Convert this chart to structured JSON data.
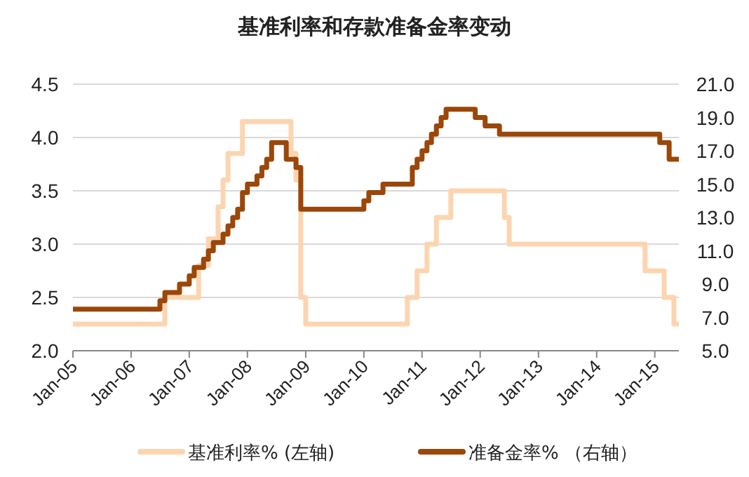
{
  "chart_data": {
    "type": "step",
    "title": "基准利率和存款准备金率变动",
    "xlim": [
      "2005-01",
      "2015-06"
    ],
    "xticks": [
      {
        "value": "2005-01",
        "label": "Jan-05"
      },
      {
        "value": "2006-01",
        "label": "Jan-06"
      },
      {
        "value": "2007-01",
        "label": "Jan-07"
      },
      {
        "value": "2008-01",
        "label": "Jan-08"
      },
      {
        "value": "2009-01",
        "label": "Jan-09"
      },
      {
        "value": "2010-01",
        "label": "Jan-10"
      },
      {
        "value": "2011-01",
        "label": "Jan-11"
      },
      {
        "value": "2012-01",
        "label": "Jan-12"
      },
      {
        "value": "2013-01",
        "label": "Jan-13"
      },
      {
        "value": "2014-01",
        "label": "Jan-14"
      },
      {
        "value": "2015-01",
        "label": "Jan-15"
      }
    ],
    "ylim": [
      2,
      4.5
    ],
    "yticks": [
      {
        "value": 2,
        "label": "2.0"
      },
      2.5,
      {
        "value": 3,
        "label": "3.0"
      },
      3.5,
      {
        "value": 4,
        "label": "4.0"
      },
      4.5
    ],
    "y2lim": [
      5,
      21
    ],
    "y2ticks": [
      {
        "value": 5,
        "label": "5.0"
      },
      {
        "value": 7,
        "label": "7.0"
      },
      {
        "value": 9,
        "label": "9.0"
      },
      {
        "value": 11,
        "label": "11.0"
      },
      {
        "value": 13,
        "label": "13.0"
      },
      {
        "value": 15,
        "label": "15.0"
      },
      {
        "value": 17,
        "label": "17.0"
      },
      {
        "value": 19,
        "label": "19.0"
      },
      {
        "value": 21,
        "label": "21.0"
      }
    ],
    "grid": "y",
    "legend": "bottom",
    "series": [
      {
        "name": "基准利率% (左轴)",
        "color": "#fcd5b0",
        "x": [
          "2005-01",
          "2006-08",
          "2007-03",
          "2007-05",
          "2007-07",
          "2007-08",
          "2007-09",
          "2007-12",
          "2008-10",
          "2008-11",
          "2008-12",
          "2009-01",
          "2010-10",
          "2010-12",
          "2011-02",
          "2011-04",
          "2011-07",
          "2012-06",
          "2012-07",
          "2014-11",
          "2015-03",
          "2015-05",
          "2015-06"
        ],
        "values": [
          2.25,
          2.5,
          2.8,
          3.05,
          3.35,
          3.6,
          3.85,
          4.15,
          3.85,
          3.6,
          2.5,
          2.25,
          2.5,
          2.75,
          3,
          3.25,
          3.5,
          3.25,
          3,
          2.75,
          2.5,
          2.25,
          2.25
        ]
      },
      {
        "name": "准备金率% （右轴）",
        "color": "#9a4709",
        "axis": "y2",
        "x": [
          "2005-01",
          "2006-07",
          "2006-08",
          "2006-11",
          "2007-01",
          "2007-02",
          "2007-04",
          "2007-05",
          "2007-06",
          "2007-08",
          "2007-09",
          "2007-10",
          "2007-11",
          "2007-12",
          "2008-01",
          "2008-03",
          "2008-04",
          "2008-05",
          "2008-06",
          "2008-09",
          "2008-11",
          "2008-12",
          "2010-01",
          "2010-02",
          "2010-05",
          "2010-11",
          "2010-12",
          "2011-01",
          "2011-02",
          "2011-03",
          "2011-04",
          "2011-05",
          "2011-06",
          "2011-12",
          "2012-02",
          "2012-05",
          "2015-02",
          "2015-04",
          "2015-06"
        ],
        "values": [
          7.5,
          8,
          8.5,
          9,
          9.5,
          10,
          10.5,
          11,
          11.5,
          12,
          12.5,
          13,
          13.5,
          14.5,
          15,
          15.5,
          16,
          16.5,
          17.5,
          16.5,
          16,
          13.5,
          14,
          14.5,
          15,
          16,
          16.5,
          17,
          17.5,
          18,
          18.5,
          19,
          19.5,
          19,
          18.5,
          18,
          17.5,
          16.5,
          16.5
        ]
      }
    ]
  }
}
